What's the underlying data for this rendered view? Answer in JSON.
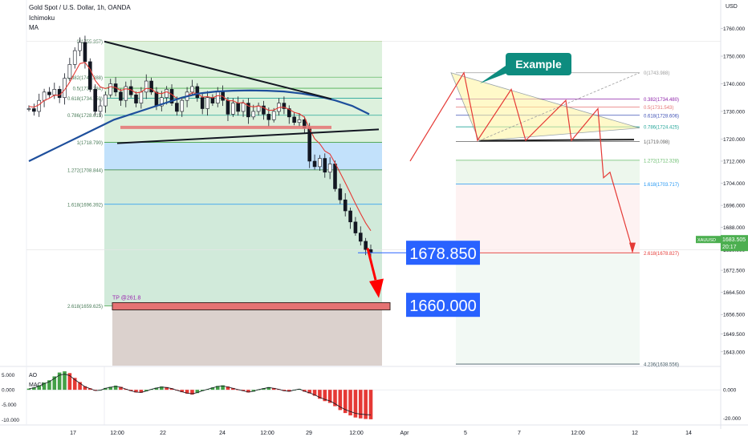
{
  "header": {
    "symbol_title": "Gold Spot / U.S. Dollar, 1h, OANDA",
    "indicator_1": "Ichimoku",
    "indicator_2": "MA"
  },
  "currency_label": "USD",
  "chart_data": {
    "type": "candlestick",
    "symbol": "Gold Spot / U.S. Dollar, 1h, OANDA",
    "y_axis": {
      "ticks": [
        "1760.000",
        "1750.000",
        "1740.000",
        "1730.000",
        "1720.000",
        "1712.000",
        "1704.000",
        "1696.000",
        "1688.000",
        "1680.000",
        "1672.500",
        "1664.500",
        "1656.500",
        "1649.500",
        "1643.000"
      ],
      "ylim": [
        1638,
        1768
      ]
    },
    "x_axis": {
      "ticks": [
        "17",
        "12:00",
        "22",
        "24",
        "12:00",
        "29",
        "12:00",
        "Apr",
        "5",
        "7",
        "12:00",
        "12",
        "14"
      ]
    },
    "price_path": [
      1731,
      1730,
      1734,
      1737,
      1736,
      1738,
      1735,
      1742,
      1747,
      1752,
      1755,
      1748,
      1738,
      1730,
      1732,
      1736,
      1740,
      1737,
      1734,
      1739,
      1736,
      1733,
      1737,
      1741,
      1737,
      1732,
      1735,
      1738,
      1733,
      1730,
      1734,
      1737,
      1739,
      1735,
      1731,
      1735,
      1733,
      1737,
      1734,
      1729,
      1733,
      1730,
      1733,
      1728,
      1730,
      1732,
      1729,
      1727,
      1730,
      1733,
      1731,
      1728,
      1726,
      1727,
      1724,
      1712,
      1710,
      1713,
      1708,
      1711,
      1702,
      1698,
      1694,
      1690,
      1686,
      1683,
      1680,
      1679
    ],
    "current_price": {
      "value": "1678.850",
      "color": "#2962ff"
    },
    "target_price": {
      "value": "1660.000",
      "color": "#2962ff"
    },
    "take_profit_label": "TP @261.8",
    "last_price": {
      "value": "1683.505",
      "countdown": "20:17",
      "symbol": "XAUUSD"
    },
    "fib_left": [
      {
        "label": "0(1755.357)",
        "price": 1755.357
      },
      {
        "label": "0.382(1742.388)",
        "price": 1742.388
      },
      {
        "label": "0.5(1738.384)",
        "price": 1738.384
      },
      {
        "label": "0.618(1734.759)",
        "price": 1734.759
      },
      {
        "label": "0.786(1728.615)",
        "price": 1728.615
      },
      {
        "label": "1(1718.790)",
        "price": 1718.79
      },
      {
        "label": "1.272(1708.844)",
        "price": 1708.844
      },
      {
        "label": "1.618(1696.392)",
        "price": 1696.392
      },
      {
        "label": "2.618(1659.625)",
        "price": 1659.625
      }
    ],
    "fib_right": [
      {
        "label": "0(1743.988)",
        "price": 1743.988
      },
      {
        "label": "0.382(1734.480)",
        "price": 1734.48
      },
      {
        "label": "0.5(1731.543)",
        "price": 1731.543
      },
      {
        "label": "0.618(1728.606)",
        "price": 1728.606
      },
      {
        "label": "0.786(1724.425)",
        "price": 1724.425
      },
      {
        "label": "1(1719.098)",
        "price": 1719.098
      },
      {
        "label": "1.272(1712.328)",
        "price": 1712.328
      },
      {
        "label": "1.618(1703.717)",
        "price": 1703.717
      },
      {
        "label": "2.618(1678.827)",
        "price": 1678.827
      },
      {
        "label": "4.236(1638.556)",
        "price": 1638.556
      }
    ],
    "example_label": "Example",
    "oscillator": {
      "name": "AO",
      "sub_label": "MACD",
      "ticks": [
        "5.000",
        "0.000",
        "-5.000",
        "-10.000"
      ],
      "right_ticks": [
        "0.000",
        "-20.000"
      ],
      "ylim": [
        -11,
        6.5
      ],
      "values": [
        0.4,
        0.8,
        1.5,
        2.4,
        3.2,
        4.5,
        5.8,
        6.2,
        5.6,
        4.0,
        2.6,
        1.2,
        0.5,
        -0.3,
        -0.2,
        0.6,
        1.0,
        1.4,
        1.0,
        0.3,
        -0.4,
        -0.9,
        -1.0,
        -0.5,
        0.2,
        0.7,
        1.1,
        0.9,
        0.5,
        -0.2,
        -0.8,
        -1.3,
        -1.6,
        -1.1,
        -0.4,
        0.2,
        0.8,
        1.3,
        1.5,
        1.1,
        0.6,
        0.1,
        -0.4,
        -0.9,
        -0.6,
        0.1,
        0.5,
        0.9,
        0.6,
        0.2,
        -0.4,
        -0.6,
        -0.1,
        0.3,
        -0.6,
        -1.2,
        -2.0,
        -3.0,
        -3.8,
        -4.4,
        -5.5,
        -6.8,
        -7.8,
        -8.6,
        -9.3,
        -9.6,
        -9.8,
        -9.9
      ]
    }
  },
  "colors": {
    "up": "#26a69a",
    "down": "#ef5350",
    "ma_blue": "#1e4f9c",
    "ma_red": "#e53935",
    "fib_green_zone": "#c8e6c9",
    "fib_blue_zone": "#bbdefb",
    "tp_box": "#e57373",
    "example_bg": "#0e8c7f"
  }
}
